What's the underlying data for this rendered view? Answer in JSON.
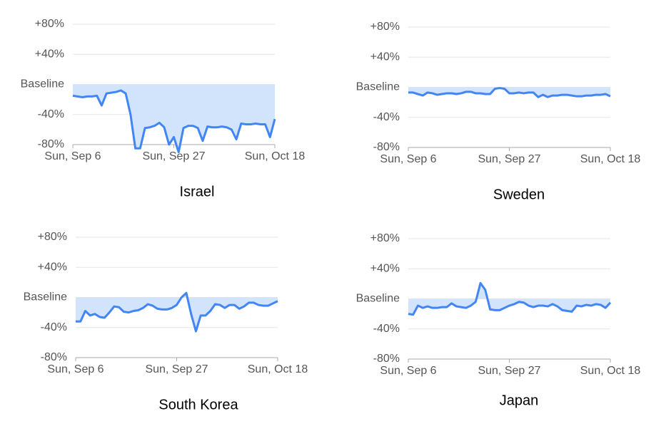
{
  "chart_data": [
    {
      "type": "line",
      "title": "Israel",
      "color": "#4285f4",
      "fill": "#d2e3fc",
      "categories": [
        "Sun, Sep 6",
        null,
        null,
        null,
        null,
        null,
        null,
        null,
        null,
        null,
        null,
        null,
        null,
        null,
        null,
        null,
        null,
        null,
        null,
        null,
        null,
        "Sun, Sep 27",
        null,
        null,
        null,
        null,
        null,
        null,
        null,
        null,
        null,
        null,
        null,
        null,
        null,
        null,
        null,
        null,
        null,
        null,
        null,
        null,
        "Sun, Oct 18"
      ],
      "values": [
        -15,
        -16,
        -17,
        -16,
        -16,
        -15,
        -28,
        -12,
        -11,
        -10,
        -8,
        -12,
        -40,
        -85,
        -85,
        -58,
        -57,
        -55,
        -51,
        -57,
        -80,
        -70,
        -90,
        -58,
        -55,
        -55,
        -58,
        -75,
        -56,
        -57,
        -57,
        -56,
        -57,
        -60,
        -73,
        -52,
        -53,
        -53,
        -52,
        -53,
        -53,
        -70,
        -46
      ],
      "ylim": [
        -80,
        80
      ],
      "yticks": [
        {
          "value": 80,
          "label": "+80%"
        },
        {
          "value": 40,
          "label": "+40%"
        },
        {
          "value": 0,
          "label": "Baseline"
        },
        {
          "value": -40,
          "label": "-40%"
        },
        {
          "value": -80,
          "label": "-80%"
        }
      ],
      "grid": true
    },
    {
      "type": "line",
      "title": "Sweden",
      "color": "#4285f4",
      "fill": "#d2e3fc",
      "categories": [
        "Sun, Sep 6",
        null,
        null,
        null,
        null,
        null,
        null,
        null,
        null,
        null,
        null,
        null,
        null,
        null,
        null,
        null,
        null,
        null,
        null,
        null,
        null,
        "Sun, Sep 27",
        null,
        null,
        null,
        null,
        null,
        null,
        null,
        null,
        null,
        null,
        null,
        null,
        null,
        null,
        null,
        null,
        null,
        null,
        null,
        null,
        "Sun, Oct 18"
      ],
      "values": [
        -7,
        -7,
        -9,
        -11,
        -7,
        -8,
        -10,
        -9,
        -8,
        -8,
        -9,
        -8,
        -6,
        -6,
        -8,
        -8,
        -9,
        -9,
        -2,
        -1,
        -2,
        -8,
        -8,
        -7,
        -8,
        -7,
        -7,
        -13,
        -10,
        -13,
        -11,
        -11,
        -10,
        -10,
        -11,
        -12,
        -12,
        -11,
        -11,
        -10,
        -10,
        -9,
        -12
      ],
      "ylim": [
        -80,
        80
      ],
      "yticks": [
        {
          "value": 80,
          "label": "+80%"
        },
        {
          "value": 40,
          "label": "+40%"
        },
        {
          "value": 0,
          "label": "Baseline"
        },
        {
          "value": -40,
          "label": "-40%"
        },
        {
          "value": -80,
          "label": "-80%"
        }
      ],
      "grid": true
    },
    {
      "type": "line",
      "title": "South Korea",
      "color": "#4285f4",
      "fill": "#d2e3fc",
      "categories": [
        "Sun, Sep 6",
        null,
        null,
        null,
        null,
        null,
        null,
        null,
        null,
        null,
        null,
        null,
        null,
        null,
        null,
        null,
        null,
        null,
        null,
        null,
        null,
        "Sun, Sep 27",
        null,
        null,
        null,
        null,
        null,
        null,
        null,
        null,
        null,
        null,
        null,
        null,
        null,
        null,
        null,
        null,
        null,
        null,
        null,
        null,
        "Sun, Oct 18"
      ],
      "values": [
        -32,
        -32,
        -18,
        -24,
        -22,
        -26,
        -27,
        -20,
        -12,
        -13,
        -19,
        -20,
        -18,
        -17,
        -14,
        -9,
        -11,
        -15,
        -16,
        -16,
        -14,
        -10,
        0,
        6,
        -22,
        -45,
        -24,
        -24,
        -18,
        -9,
        -10,
        -14,
        -10,
        -10,
        -15,
        -12,
        -7,
        -7,
        -10,
        -11,
        -11,
        -8,
        -5
      ],
      "ylim": [
        -80,
        80
      ],
      "yticks": [
        {
          "value": 80,
          "label": "+80%"
        },
        {
          "value": 40,
          "label": "+40%"
        },
        {
          "value": 0,
          "label": "Baseline"
        },
        {
          "value": -40,
          "label": "-40%"
        },
        {
          "value": -80,
          "label": "-80%"
        }
      ],
      "grid": true
    },
    {
      "type": "line",
      "title": "Japan",
      "color": "#4285f4",
      "fill": "#d2e3fc",
      "categories": [
        "Sun, Sep 6",
        null,
        null,
        null,
        null,
        null,
        null,
        null,
        null,
        null,
        null,
        null,
        null,
        null,
        null,
        null,
        null,
        null,
        null,
        null,
        null,
        "Sun, Sep 27",
        null,
        null,
        null,
        null,
        null,
        null,
        null,
        null,
        null,
        null,
        null,
        null,
        null,
        null,
        null,
        null,
        null,
        null,
        null,
        null,
        "Sun, Oct 18"
      ],
      "values": [
        -20,
        -21,
        -9,
        -12,
        -10,
        -12,
        -12,
        -11,
        -11,
        -6,
        -10,
        -11,
        -12,
        -9,
        -4,
        21,
        12,
        -14,
        -15,
        -15,
        -12,
        -9,
        -7,
        -4,
        -5,
        -9,
        -11,
        -9,
        -9,
        -10,
        -7,
        -10,
        -15,
        -16,
        -17,
        -9,
        -10,
        -8,
        -9,
        -7,
        -8,
        -12,
        -5
      ],
      "ylim": [
        -80,
        80
      ],
      "yticks": [
        {
          "value": 80,
          "label": "+80%"
        },
        {
          "value": 40,
          "label": "+40%"
        },
        {
          "value": 0,
          "label": "Baseline"
        },
        {
          "value": -40,
          "label": "-40%"
        },
        {
          "value": -80,
          "label": "-80%"
        }
      ],
      "grid": true
    }
  ]
}
